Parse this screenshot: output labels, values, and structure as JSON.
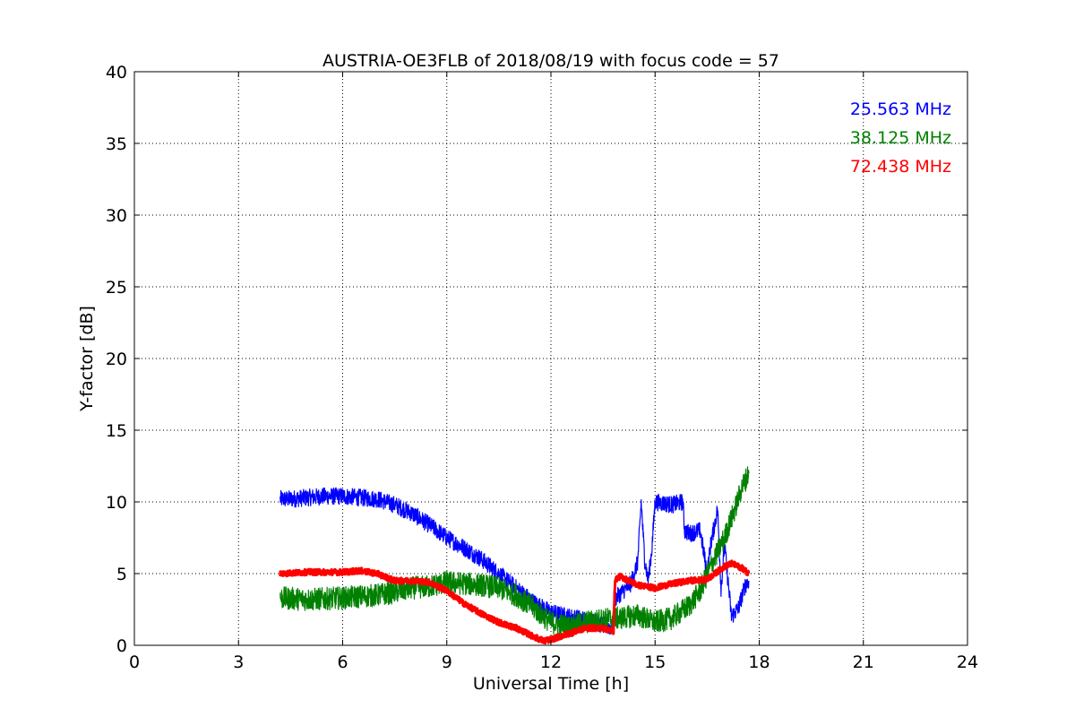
{
  "chart_data": {
    "type": "line",
    "title": "AUSTRIA-OE3FLB of 2018/08/19 with focus code = 57",
    "xlabel": "Universal Time [h]",
    "ylabel": "Y-factor [dB]",
    "xlim": [
      0,
      24
    ],
    "ylim": [
      0,
      40
    ],
    "xticks": [
      0,
      3,
      6,
      9,
      12,
      15,
      18,
      21,
      24
    ],
    "yticks": [
      0,
      5,
      10,
      15,
      20,
      25,
      30,
      35,
      40
    ],
    "grid": true,
    "legend_position": "top-right",
    "series": [
      {
        "name": "25.563 MHz",
        "color": "#0000ff",
        "noise": 0.6,
        "x": [
          4.2,
          4.5,
          5.0,
          5.5,
          6.0,
          6.5,
          7.0,
          7.5,
          8.0,
          8.5,
          9.0,
          9.5,
          10.0,
          10.5,
          11.0,
          11.5,
          12.0,
          12.5,
          13.0,
          13.5,
          13.8,
          13.82,
          14.0,
          14.3,
          14.5,
          14.6,
          14.7,
          14.8,
          14.9,
          15.0,
          15.5,
          15.8,
          15.85,
          16.0,
          16.3,
          16.5,
          16.6,
          16.8,
          16.9,
          17.0,
          17.2,
          17.4,
          17.6,
          17.7
        ],
        "y": [
          10.2,
          10.2,
          10.3,
          10.4,
          10.4,
          10.3,
          10.2,
          9.8,
          9.2,
          8.4,
          7.5,
          6.8,
          6.0,
          5.0,
          4.0,
          3.0,
          2.3,
          2.0,
          1.8,
          1.4,
          1.2,
          3.2,
          3.6,
          4.3,
          5.8,
          10.0,
          6.0,
          4.5,
          6.5,
          10.0,
          9.8,
          10.0,
          8.0,
          7.8,
          8.0,
          5.0,
          7.0,
          9.5,
          4.0,
          7.0,
          2.0,
          2.6,
          4.2,
          4.5
        ]
      },
      {
        "name": "38.125 MHz",
        "color": "#008000",
        "noise": 0.8,
        "x": [
          4.2,
          5.0,
          6.0,
          7.0,
          7.5,
          8.0,
          8.5,
          9.0,
          9.5,
          10.0,
          10.5,
          11.0,
          11.5,
          12.0,
          12.5,
          13.0,
          13.5,
          14.0,
          14.5,
          15.0,
          15.5,
          16.0,
          16.3,
          16.6,
          17.0,
          17.3,
          17.5,
          17.7
        ],
        "y": [
          3.3,
          3.2,
          3.3,
          3.5,
          3.7,
          4.0,
          4.1,
          4.4,
          4.3,
          4.2,
          4.0,
          3.5,
          2.6,
          1.6,
          1.3,
          1.6,
          1.8,
          1.9,
          2.1,
          1.6,
          1.9,
          2.8,
          3.8,
          5.5,
          7.5,
          9.5,
          11.0,
          12.0
        ]
      },
      {
        "name": "72.438 MHz",
        "color": "#ff0000",
        "noise": 0.2,
        "x": [
          4.2,
          5.0,
          6.0,
          6.5,
          7.0,
          7.5,
          8.0,
          8.5,
          9.0,
          9.5,
          10.0,
          10.5,
          11.0,
          11.5,
          11.8,
          12.0,
          12.5,
          13.0,
          13.5,
          13.8,
          13.85,
          14.0,
          14.5,
          15.0,
          15.5,
          16.0,
          16.5,
          17.0,
          17.2,
          17.5,
          17.7
        ],
        "y": [
          5.0,
          5.1,
          5.1,
          5.2,
          5.0,
          4.5,
          4.5,
          4.4,
          3.8,
          2.9,
          2.2,
          1.6,
          1.2,
          0.6,
          0.3,
          0.4,
          0.8,
          1.2,
          1.2,
          1.0,
          4.6,
          4.8,
          4.2,
          4.0,
          4.3,
          4.5,
          4.6,
          5.5,
          5.7,
          5.4,
          5.0
        ]
      }
    ]
  }
}
